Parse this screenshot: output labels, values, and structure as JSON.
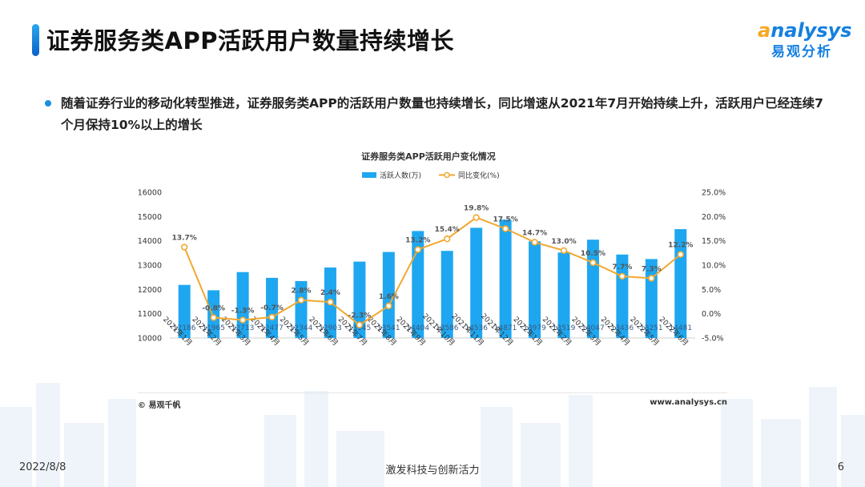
{
  "header": {
    "title": "证券服务类APP活跃用户数量持续增长",
    "logo_en_first": "a",
    "logo_en_rest": "nalysys",
    "logo_cn": "易观分析"
  },
  "description": "随着证券行业的移动化转型推进，证券服务类APP的活跃用户数量也持续增长，同比增速从2021年7月开始持续上升，活跃用户已经连续7个月保持10%以上的增长",
  "chart_data": {
    "type": "bar",
    "title": "证券服务类APP活跃用户变化情况",
    "categories": [
      "2021年1月",
      "2021年2月",
      "2021年3月",
      "2021年4月",
      "2021年5月",
      "2021年6月",
      "2021年7月",
      "2021年8月",
      "2021年9月",
      "2021年10月",
      "2021年11月",
      "2021年12月",
      "2022年1月",
      "2022年2月",
      "2022年3月",
      "2022年4月",
      "2022年5月",
      "2022年6月"
    ],
    "series": [
      {
        "name": "活跃人数(万)",
        "type": "bar",
        "axis": "left",
        "color": "#1ea7f0",
        "values": [
          12186,
          11965,
          12713,
          12477,
          12344,
          12903,
          13145,
          13541,
          14404,
          13586,
          14536,
          14871,
          13979,
          13519,
          14047,
          13436,
          13251,
          14481
        ]
      },
      {
        "name": "同比变化(%)",
        "type": "line",
        "axis": "right",
        "color": "#f0a830",
        "values": [
          13.7,
          -0.8,
          -1.3,
          -0.7,
          2.8,
          2.4,
          -2.3,
          1.6,
          13.2,
          15.4,
          19.8,
          17.5,
          14.7,
          13.0,
          10.5,
          7.7,
          7.3,
          12.2
        ],
        "labels": [
          "13.7%",
          "-0.8%",
          "-1.3%",
          "-0.7%",
          "2.8%",
          "2.4%",
          "-2.3%",
          "1.6%",
          "13.2%",
          "15.4%",
          "19.8%",
          "17.5%",
          "14.7%",
          "13.0%",
          "10.5%",
          "7.7%",
          "7.3%",
          "12.2%"
        ]
      }
    ],
    "y_left": {
      "min": 10000,
      "max": 16000,
      "ticks": [
        "10000",
        "11000",
        "12000",
        "13000",
        "14000",
        "15000",
        "16000"
      ]
    },
    "y_right": {
      "min": -5,
      "max": 25,
      "ticks": [
        "-5.0%",
        "0.0%",
        "5.0%",
        "10.0%",
        "15.0%",
        "20.0%",
        "25.0%"
      ]
    },
    "legend_position": "top-center",
    "grid": false
  },
  "chart_footer": {
    "source": "© 易观千帆",
    "website": "www.analysys.cn"
  },
  "footer": {
    "date": "2022/8/8",
    "slogan": "激发科技与创新活力",
    "page": "6"
  }
}
